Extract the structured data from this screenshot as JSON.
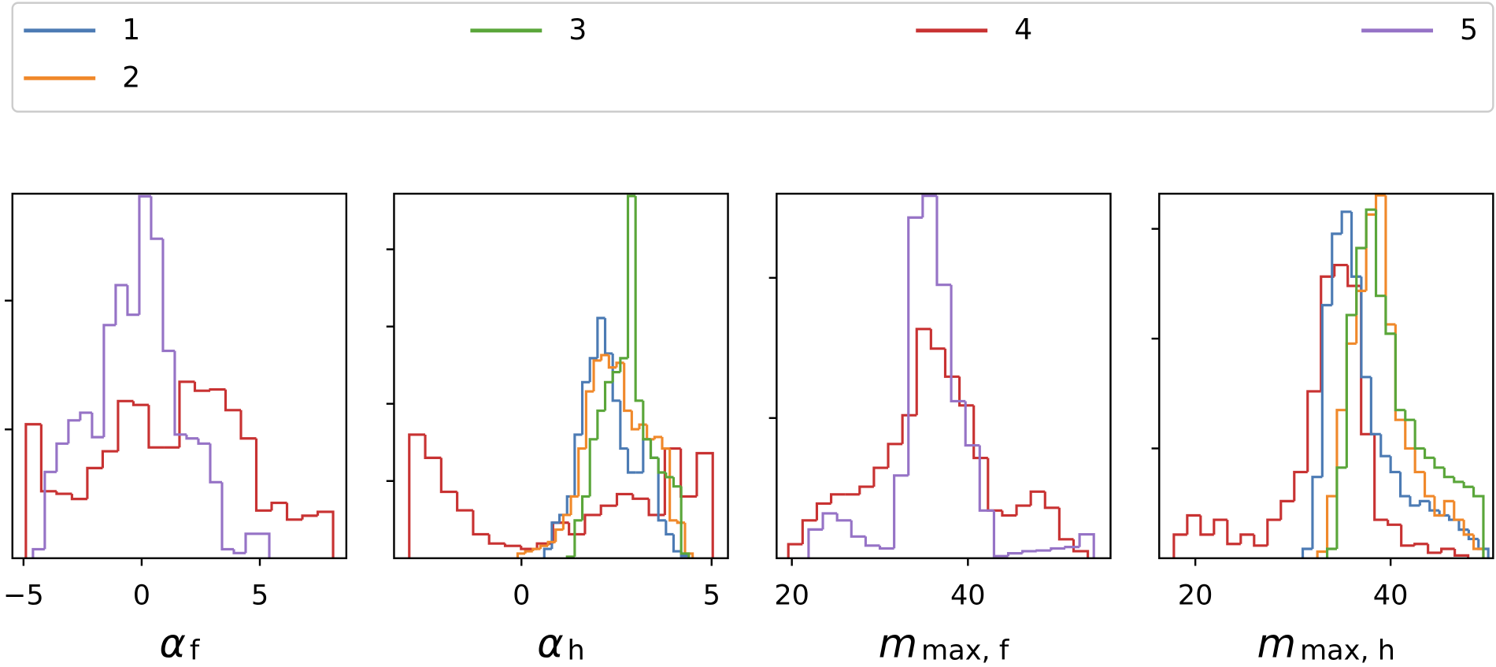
{
  "legend": [
    {
      "name": "1",
      "color": "#4c7bb4"
    },
    {
      "name": "2",
      "color": "#f0892b"
    },
    {
      "name": "3",
      "color": "#5aa63a"
    },
    {
      "name": "4",
      "color": "#c83232"
    },
    {
      "name": "5",
      "color": "#9673c6"
    }
  ],
  "chart_data": [
    {
      "type": "histogram",
      "xlabel": {
        "main": "α",
        "sub": "f"
      },
      "xlim": [
        -5.47,
        8.66
      ],
      "ylim": [
        0,
        0.283
      ],
      "xticks": [
        {
          "value": -5,
          "label": "−5"
        },
        0,
        5
      ],
      "yticks": [
        0.1,
        0.2
      ],
      "series": [
        {
          "color": "#c83232",
          "bins": [
            -4.9,
            -4.25,
            -3.6,
            -2.95,
            -2.3,
            -1.65,
            -1.0,
            -0.35,
            0.3,
            0.95,
            1.6,
            2.25,
            2.9,
            3.55,
            4.2,
            4.85,
            5.5,
            6.15,
            6.8,
            7.45,
            8.1
          ],
          "values": [
            0.104,
            0.052,
            0.05,
            0.046,
            0.07,
            0.083,
            0.122,
            0.119,
            0.086,
            0.086,
            0.137,
            0.13,
            0.131,
            0.115,
            0.093,
            0.037,
            0.043,
            0.03,
            0.033,
            0.036
          ]
        },
        {
          "color": "#9673c6",
          "bins": [
            -4.6,
            -4.1,
            -3.6,
            -3.1,
            -2.6,
            -2.1,
            -1.6,
            -1.1,
            -0.6,
            -0.1,
            0.4,
            0.9,
            1.4,
            1.9,
            2.4,
            2.9,
            3.4,
            3.9,
            4.4,
            4.9,
            5.4
          ],
          "values": [
            0.007,
            0.067,
            0.089,
            0.107,
            0.113,
            0.094,
            0.181,
            0.212,
            0.189,
            0.281,
            0.248,
            0.161,
            0.096,
            0.093,
            0.089,
            0.059,
            0.007,
            0.004,
            0.019,
            0.019
          ]
        }
      ]
    },
    {
      "type": "histogram",
      "xlabel": {
        "main": "α",
        "sub": "h"
      },
      "xlim": [
        -3.35,
        5.43
      ],
      "ylim": [
        0,
        0.472
      ],
      "xticks": [
        0,
        5
      ],
      "yticks": [
        0.1,
        0.2,
        0.3,
        0.4
      ],
      "series": [
        {
          "color": "#c83232",
          "bins": [
            -2.95,
            -2.53,
            -2.11,
            -1.69,
            -1.27,
            -0.85,
            -0.43,
            -0.01,
            0.41,
            0.83,
            1.25,
            1.67,
            2.09,
            2.51,
            2.93,
            3.35,
            3.77,
            4.19,
            4.61,
            5.03
          ],
          "values": [
            0.16,
            0.13,
            0.086,
            0.062,
            0.031,
            0.019,
            0.016,
            0.012,
            0.019,
            0.046,
            0.031,
            0.056,
            0.068,
            0.083,
            0.077,
            0.056,
            0.142,
            0.08,
            0.136
          ]
        },
        {
          "color": "#4c7bb4",
          "bins": [
            0.6,
            0.8,
            1.0,
            1.2,
            1.4,
            1.6,
            1.8,
            2.0,
            2.2,
            2.4,
            2.6,
            2.8,
            3.0,
            3.2,
            3.4,
            3.6,
            3.8,
            4.0,
            4.2,
            4.4
          ],
          "values": [
            0.012,
            0.046,
            0.056,
            0.08,
            0.16,
            0.228,
            0.259,
            0.311,
            0.265,
            0.204,
            0.142,
            0.111,
            0.111,
            0.154,
            0.13,
            0.049,
            0.031,
            0.009,
            0.003
          ]
        },
        {
          "color": "#f0892b",
          "bins": [
            -0.1,
            0.1,
            0.3,
            0.5,
            0.7,
            0.9,
            1.1,
            1.3,
            1.5,
            1.7,
            1.9,
            2.1,
            2.3,
            2.5,
            2.7,
            2.9,
            3.1,
            3.3,
            3.5,
            3.7,
            3.9,
            4.1,
            4.3,
            4.5
          ],
          "values": [
            0.006,
            0.009,
            0.012,
            0.016,
            0.021,
            0.037,
            0.056,
            0.08,
            0.142,
            0.216,
            0.256,
            0.263,
            0.247,
            0.253,
            0.191,
            0.167,
            0.173,
            0.154,
            0.157,
            0.142,
            0.049,
            0.046,
            0.006
          ]
        },
        {
          "color": "#5aa63a",
          "bins": [
            1.2,
            1.4,
            1.6,
            1.8,
            2.0,
            2.2,
            2.4,
            2.6,
            2.8,
            3.0,
            3.2,
            3.4,
            3.6,
            3.8,
            4.0,
            4.2,
            4.4
          ],
          "values": [
            0.002,
            0.049,
            0.08,
            0.154,
            0.191,
            0.228,
            0.241,
            0.259,
            0.469,
            0.204,
            0.154,
            0.13,
            0.111,
            0.105,
            0.093,
            0.006
          ]
        }
      ]
    },
    {
      "type": "histogram",
      "xlabel": {
        "main": "m",
        "sub": "max, f"
      },
      "xlim": [
        18.27,
        56.2
      ],
      "ylim": [
        0,
        0.052
      ],
      "xticks": [
        20,
        40
      ],
      "yticks": [
        0.02,
        0.04
      ],
      "series": [
        {
          "color": "#c83232",
          "bins": [
            19.6,
            21.22,
            22.84,
            24.46,
            26.08,
            27.7,
            29.32,
            30.94,
            32.56,
            34.18,
            35.8,
            37.42,
            39.04,
            40.66,
            42.28,
            43.9,
            45.52,
            47.14,
            48.76,
            50.38,
            52.0,
            53.62
          ],
          "values": [
            0.002,
            0.0054,
            0.0078,
            0.0091,
            0.0091,
            0.0102,
            0.0129,
            0.0163,
            0.0204,
            0.0327,
            0.0299,
            0.0259,
            0.0218,
            0.0143,
            0.0068,
            0.0061,
            0.0075,
            0.0095,
            0.0072,
            0.0027,
            0.001
          ]
        },
        {
          "color": "#9673c6",
          "bins": [
            21.9,
            23.52,
            25.14,
            26.76,
            28.38,
            30.0,
            31.62,
            33.24,
            34.86,
            36.48,
            38.1,
            39.72,
            41.34,
            42.96,
            44.58,
            46.2,
            47.82,
            49.44,
            51.06,
            52.68,
            54.3
          ],
          "values": [
            0.0041,
            0.0064,
            0.0054,
            0.0031,
            0.0018,
            0.0014,
            0.0118,
            0.0486,
            0.0517,
            0.039,
            0.0224,
            0.0161,
            0.0068,
            0.0003,
            0.0007,
            0.001,
            0.0011,
            0.0014,
            0.0016,
            0.0034
          ]
        }
      ]
    },
    {
      "type": "histogram",
      "xlabel": {
        "main": "m",
        "sub": "max, h"
      },
      "xlim": [
        16.3,
        50.5
      ],
      "ylim": [
        0,
        0.0664
      ],
      "xticks": [
        20,
        40
      ],
      "yticks": [
        0.02,
        0.04,
        0.06
      ],
      "series": [
        {
          "color": "#c83232",
          "bins": [
            17.8,
            19.17,
            20.54,
            21.91,
            23.28,
            24.65,
            26.02,
            27.39,
            28.76,
            30.13,
            31.5,
            32.87,
            34.24,
            35.61,
            36.98,
            38.35,
            39.72,
            41.09,
            42.46,
            43.83,
            45.2,
            46.57,
            47.94
          ],
          "values": [
            0.0043,
            0.0078,
            0.0043,
            0.007,
            0.0026,
            0.0043,
            0.0023,
            0.007,
            0.0104,
            0.0157,
            0.0304,
            0.0513,
            0.0534,
            0.0496,
            0.0226,
            0.007,
            0.0061,
            0.0023,
            0.0026,
            0.001,
            0.0017,
            0.0005
          ]
        },
        {
          "color": "#4c7bb4",
          "bins": [
            31,
            32,
            33,
            34,
            35,
            36,
            37,
            38,
            39,
            40,
            41,
            42,
            43,
            44,
            45,
            46,
            47,
            48,
            49,
            50
          ],
          "values": [
            0.0017,
            0.0148,
            0.0461,
            0.0591,
            0.0631,
            0.0513,
            0.033,
            0.0226,
            0.0186,
            0.0157,
            0.0113,
            0.0096,
            0.0104,
            0.0087,
            0.0078,
            0.007,
            0.0052,
            0.0035,
            0.0017
          ]
        },
        {
          "color": "#f0892b",
          "bins": [
            32.5,
            33.5,
            34.5,
            35.5,
            36.5,
            37.5,
            38.5,
            39.5,
            40.5,
            41.5,
            42.5,
            43.5,
            44.5,
            45.5,
            46.5,
            47.5,
            48.5,
            49.5
          ],
          "values": [
            0.0012,
            0.0113,
            0.027,
            0.0391,
            0.0487,
            0.0626,
            0.0661,
            0.0426,
            0.0252,
            0.02,
            0.0157,
            0.0113,
            0.0078,
            0.0104,
            0.007,
            0.0043,
            0.0017
          ]
        },
        {
          "color": "#5aa63a",
          "bins": [
            33.5,
            34.5,
            35.5,
            36.5,
            37.5,
            38.5,
            39.5,
            40.5,
            41.5,
            42.5,
            43.5,
            44.5,
            45.5,
            46.5,
            47.5,
            48.5,
            49.5
          ],
          "values": [
            0.0017,
            0.0165,
            0.0443,
            0.0565,
            0.0635,
            0.0478,
            0.0409,
            0.027,
            0.0252,
            0.02,
            0.0183,
            0.0165,
            0.0148,
            0.0139,
            0.013,
            0.0113
          ]
        }
      ]
    }
  ]
}
